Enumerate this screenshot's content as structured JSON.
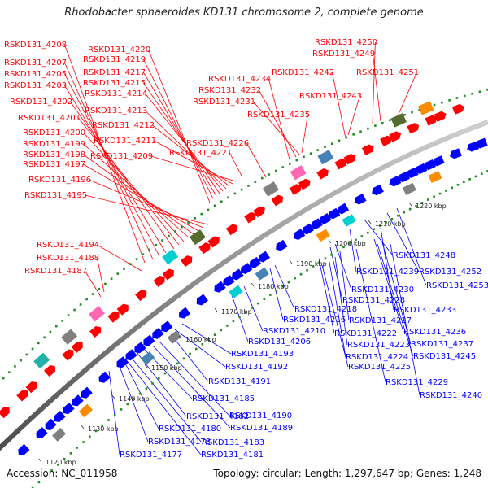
{
  "title": "Rhodobacter sphaeroides KD131 chromosome 2, complete genome",
  "accession": "Accession: NC_011958",
  "meta": "Topology: circular; Length: 1,297,647 bp; Genes: 1,248",
  "colors": {
    "forward": "#ff0000",
    "reverse": "#0000ff",
    "backbone": "#999999",
    "gc_dots": "#228b22"
  },
  "kbp_ticks": [
    "1120 kbp",
    "1130 kbp",
    "1140 kbp",
    "1150 kbp",
    "1160 kbp",
    "1170 kbp",
    "1180 kbp",
    "1190 kbp",
    "1200 kbp",
    "1210 kbp",
    "1220 kbp"
  ],
  "labels_forward": [
    "RSKD131_4208",
    "RSKD131_4207",
    "RSKD131_4205",
    "RSKD131_4203",
    "RSKD131_4202",
    "RSKD131_4201",
    "RSKD131_4200",
    "RSKD131_4199",
    "RSKD131_4198",
    "RSKD131_4197",
    "RSKD131_4196",
    "RSKD131_4195",
    "RSKD131_4194",
    "RSKD131_4188",
    "RSKD131_4187",
    "RSKD131_4220",
    "RSKD131_4219",
    "RSKD131_4217",
    "RSKD131_4215",
    "RSKD131_4214",
    "RSKD131_4213",
    "RSKD131_4212",
    "RSKD131_4211",
    "RSKD131_4209",
    "RSKD131_4226",
    "RSKD131_4221",
    "RSKD131_4234",
    "RSKD131_4232",
    "RSKD131_4231",
    "RSKD131_4235",
    "RSKD131_4242",
    "RSKD131_4243",
    "RSKD131_4250",
    "RSKD131_4249",
    "RSKD131_4251"
  ],
  "labels_reverse": [
    "RSKD131_4248",
    "RSKD131_4239",
    "RSKD131_4252",
    "RSKD131_4253",
    "RSKD131_4230",
    "RSKD131_4228",
    "RSKD131_4233",
    "RSKD131_4218",
    "RSKD131_4227",
    "RSKD131_4216",
    "RSKD131_4236",
    "RSKD131_4222",
    "RSKD131_4210",
    "RSKD131_4223",
    "RSKD131_4237",
    "RSKD131_4206",
    "RSKD131_4224",
    "RSKD131_4245",
    "RSKD131_4193",
    "RSKD131_4225",
    "RSKD131_4192",
    "RSKD131_4229",
    "RSKD131_4191",
    "RSKD131_4240",
    "RSKD131_4185",
    "RSKD131_4182",
    "RSKD131_4190",
    "RSKD131_4180",
    "RSKD131_4189",
    "RSKD131_4178",
    "RSKD131_4183",
    "RSKD131_4177",
    "RSKD131_4181"
  ]
}
